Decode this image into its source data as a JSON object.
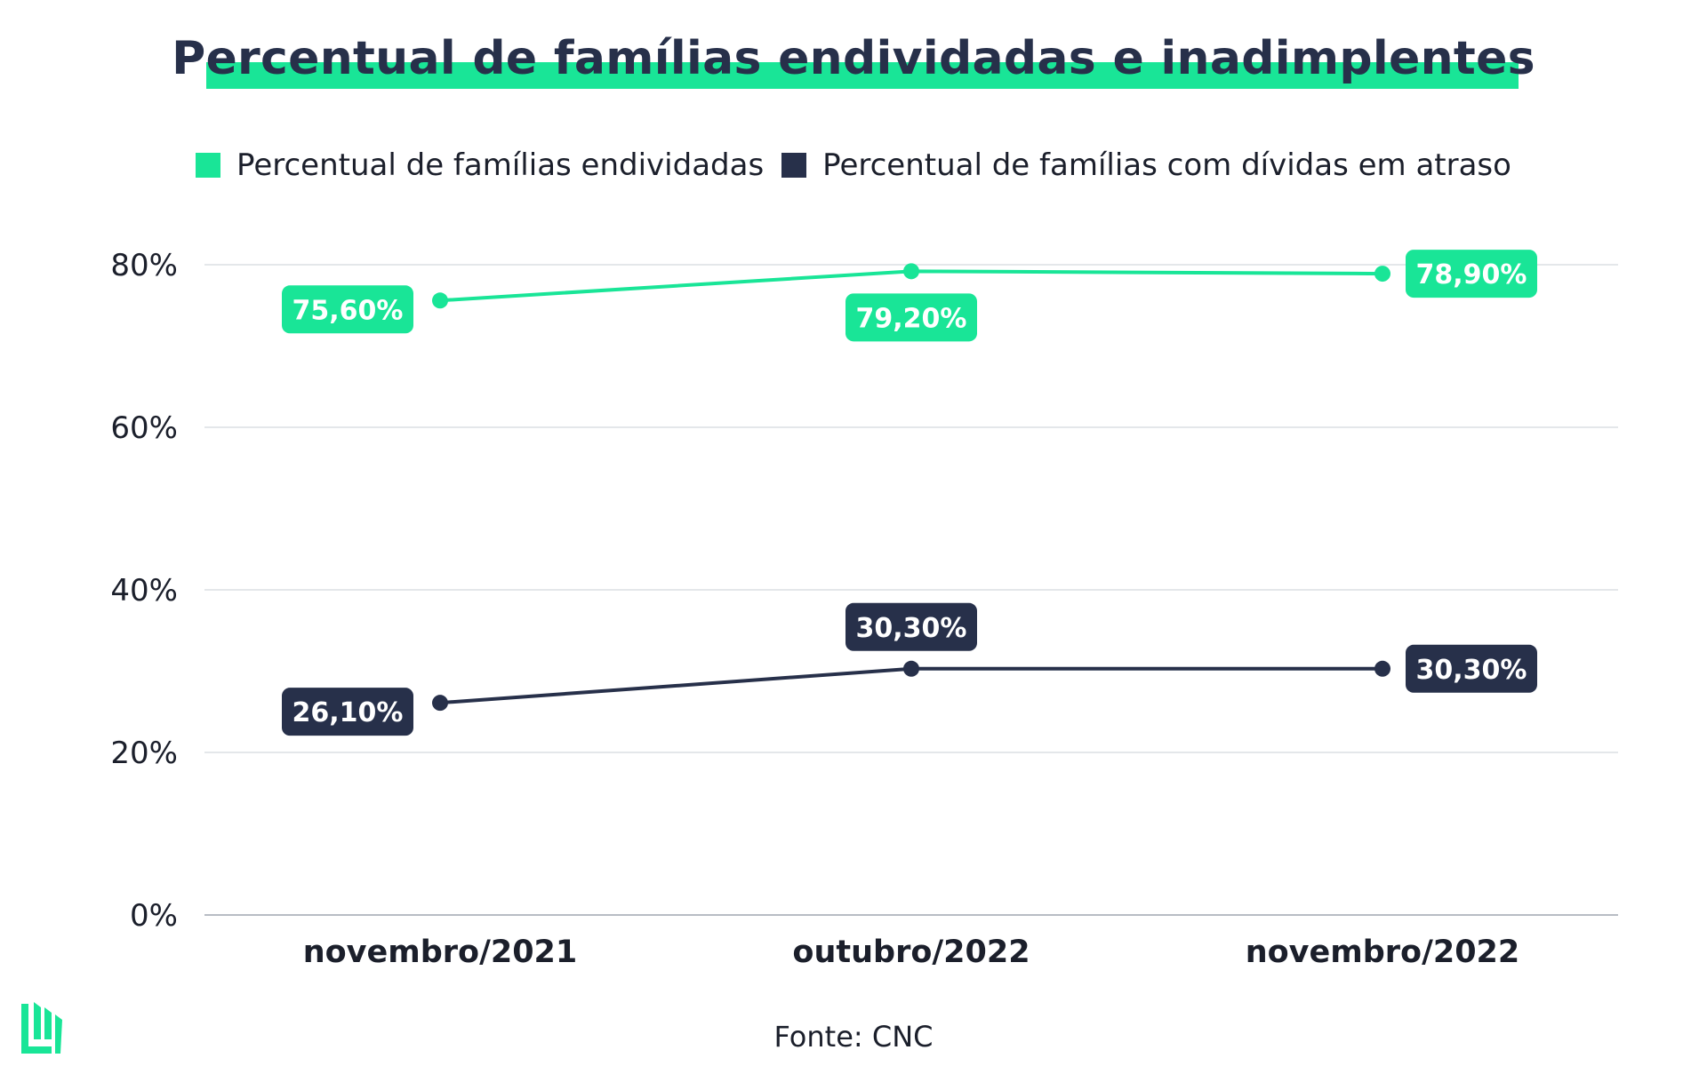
{
  "chart_data": {
    "type": "line",
    "title": "Percentual de famílias endividadas e inadimplentes",
    "categories": [
      "novembro/2021",
      "outubro/2022",
      "novembro/2022"
    ],
    "series": [
      {
        "name": "Percentual de famílias endividadas",
        "color": "#19e597",
        "label_text_color": "#ffffff",
        "values": [
          75.6,
          79.2,
          78.9
        ],
        "labels": [
          "75,60%",
          "79,20%",
          "78,90%"
        ],
        "label_placement": [
          "left",
          "below",
          "right"
        ]
      },
      {
        "name": "Percentual de famílias com dívidas em atraso",
        "color": "#27304a",
        "label_text_color": "#ffffff",
        "values": [
          26.1,
          30.3,
          30.3
        ],
        "labels": [
          "26,10%",
          "30,30%",
          "30,30%"
        ],
        "label_placement": [
          "left",
          "above",
          "right"
        ]
      }
    ],
    "ylim": [
      0,
      80
    ],
    "yticks": [
      0,
      20,
      40,
      60,
      80
    ],
    "ytick_labels": [
      "0%",
      "20%",
      "40%",
      "60%",
      "80%"
    ],
    "xlabel": "",
    "ylabel": "",
    "grid": true,
    "legend_position": "top-center"
  },
  "source": "Fonte: CNC",
  "logo": {
    "icon": "brand-logo-icon",
    "color": "#19e597"
  }
}
